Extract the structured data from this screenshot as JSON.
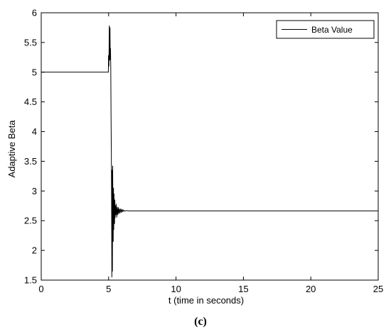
{
  "chart_data": {
    "type": "line",
    "title": "",
    "xlabel": "t (time in seconds)",
    "ylabel": "Adaptive Beta",
    "xlim": [
      0,
      25
    ],
    "ylim": [
      1.5,
      6
    ],
    "xticks": [
      0,
      5,
      10,
      15,
      20,
      25
    ],
    "yticks": [
      1.5,
      2,
      2.5,
      3,
      3.5,
      4,
      4.5,
      5,
      5.5,
      6
    ],
    "xtick_labels": [
      "0",
      "5",
      "10",
      "15",
      "20",
      "25"
    ],
    "ytick_labels": [
      "1.5",
      "2",
      "2.5",
      "3",
      "3.5",
      "4",
      "4.5",
      "5",
      "5.5",
      "6"
    ],
    "grid": false,
    "legend_position": "top-right",
    "series": [
      {
        "name": "Beta Value",
        "color": "#000000",
        "x": [
          0,
          4.98,
          4.99,
          5.02,
          5.05,
          5.08,
          5.1,
          5.12,
          5.14,
          5.16,
          5.18,
          5.2,
          5.22,
          5.24,
          5.26,
          5.28,
          5.3,
          5.32,
          5.34,
          5.36,
          5.38,
          5.4,
          5.42,
          5.44,
          5.46,
          5.48,
          5.5,
          5.53,
          5.56,
          5.6,
          5.64,
          5.68,
          5.72,
          5.76,
          5.8,
          5.85,
          5.9,
          5.95,
          6.0,
          6.05,
          6.1,
          6.2,
          6.3,
          6.5,
          25
        ],
        "y": [
          5.0,
          5.0,
          5.28,
          5.1,
          5.78,
          5.2,
          5.75,
          5.22,
          5.4,
          5.05,
          4.25,
          3.7,
          2.85,
          1.55,
          3.35,
          1.65,
          3.42,
          2.6,
          2.15,
          3.05,
          2.35,
          2.95,
          2.55,
          2.45,
          2.85,
          2.55,
          2.75,
          2.6,
          2.78,
          2.56,
          2.73,
          2.6,
          2.72,
          2.62,
          2.7,
          2.63,
          2.7,
          2.64,
          2.69,
          2.65,
          2.68,
          2.66,
          2.67,
          2.665,
          2.665
        ]
      }
    ]
  },
  "legend": {
    "label": "Beta Value"
  },
  "panel_label": "(c)"
}
